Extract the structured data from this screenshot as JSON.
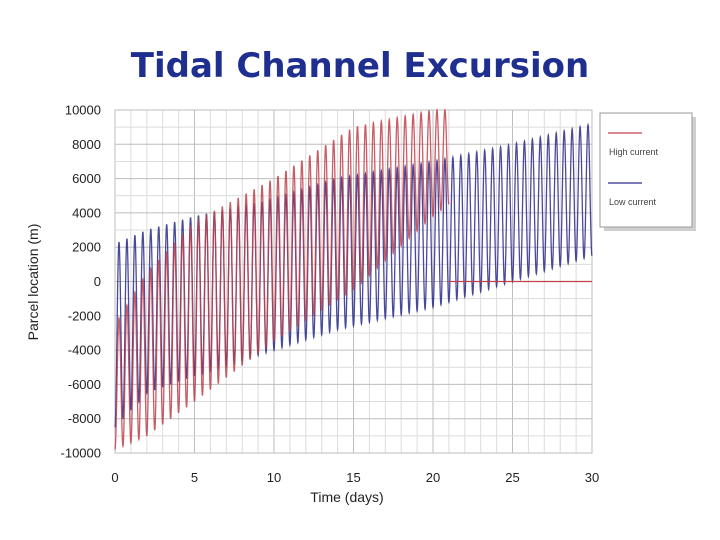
{
  "slide": {
    "title": "Tidal Channel Excursion"
  },
  "chart_data": {
    "type": "line",
    "xlabel": "Time (days)",
    "ylabel": "Parcel location (m)",
    "xlim": [
      0,
      30
    ],
    "ylim": [
      -10000,
      10000
    ],
    "xticks": [
      "0",
      "5",
      "10",
      "15",
      "20",
      "25",
      "30"
    ],
    "yticks": [
      "-10000",
      "-8000",
      "-6000",
      "-4000",
      "-2000",
      "0",
      "2000",
      "4000",
      "6000",
      "8000",
      "10000"
    ],
    "grid": true,
    "legend_position": "top-right",
    "series": [
      {
        "name": "High current",
        "color": "#c0404a",
        "style": "oscillating",
        "period_days": 0.5,
        "t_end_days": 21,
        "envelope": {
          "t": [
            0,
            2,
            5,
            10,
            15,
            20,
            21
          ],
          "low": [
            -9800,
            -9000,
            -7000,
            -3500,
            -500,
            3800,
            4500
          ],
          "high": [
            -2500,
            500,
            3500,
            6000,
            9000,
            10000,
            10000
          ]
        },
        "after_end_value": 0
      },
      {
        "name": "Low current",
        "color": "#2a2a8a",
        "style": "oscillating",
        "period_days": 0.5,
        "t_end_days": 30,
        "envelope": {
          "t": [
            0,
            2,
            5,
            10,
            14,
            20,
            25,
            30
          ],
          "low": [
            -8500,
            -6500,
            -5500,
            -4000,
            -2800,
            -1500,
            0,
            1500
          ],
          "high": [
            2200,
            3000,
            3800,
            4800,
            6000,
            7000,
            8000,
            9200
          ]
        }
      }
    ]
  }
}
